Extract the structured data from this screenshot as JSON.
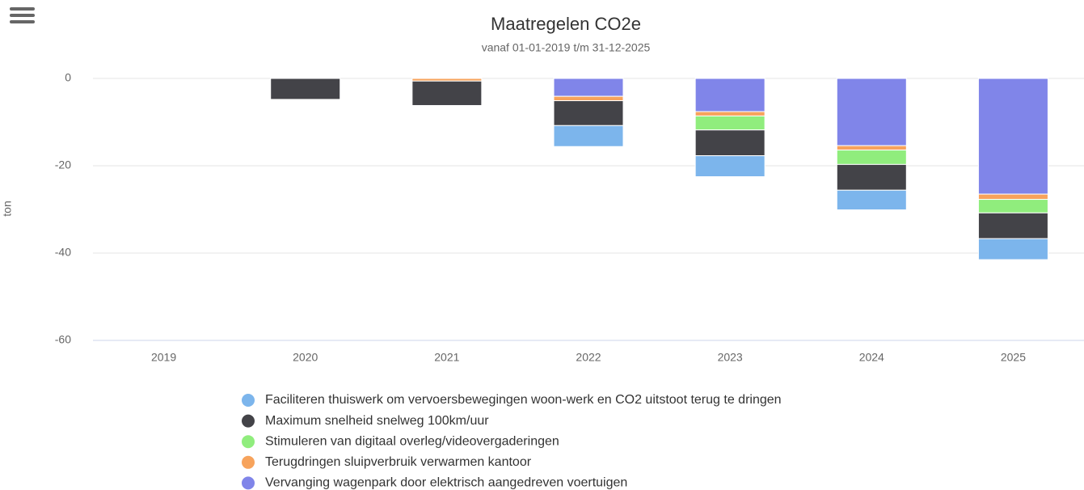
{
  "chart_data": {
    "type": "stacked_bar",
    "title": "Maatregelen CO2e",
    "subtitle": "vanaf 01-01-2019 t/m 31-12-2025",
    "y_axis_label": "ton",
    "categories": [
      "2019",
      "2020",
      "2021",
      "2022",
      "2023",
      "2024",
      "2025"
    ],
    "series": [
      {
        "name": "Faciliteren thuiswerk om vervoersbewegingen woon-werk en CO2 uitstoot terug te dringen",
        "color": "#7cb5ec",
        "values": [
          0,
          0,
          0,
          -4.8,
          -4.8,
          -4.5,
          -4.8
        ]
      },
      {
        "name": "Maximum snelheid snelweg 100km/uur",
        "color": "#434348",
        "values": [
          0,
          -4.8,
          -5.6,
          -5.7,
          -5.9,
          -5.9,
          -5.9
        ]
      },
      {
        "name": "Stimuleren van digitaal overleg/videovergaderingen",
        "color": "#90ed7d",
        "values": [
          0,
          0,
          0,
          0,
          -3.2,
          -3.3,
          -3.1
        ]
      },
      {
        "name": "Terugdringen sluipverbruik verwarmen kantoor",
        "color": "#f7a35c",
        "values": [
          0,
          0,
          -0.6,
          -1.0,
          -1.0,
          -1.0,
          -1.2
        ]
      },
      {
        "name": "Vervanging wagenpark door elektrisch aangedreven voertuigen",
        "color": "#8085e9",
        "values": [
          0,
          0,
          0,
          -4.1,
          -7.6,
          -15.4,
          -26.5
        ]
      }
    ],
    "ylim": [
      -60,
      0
    ],
    "yticks": [
      0,
      -20,
      -40,
      -60
    ],
    "grid": true
  }
}
